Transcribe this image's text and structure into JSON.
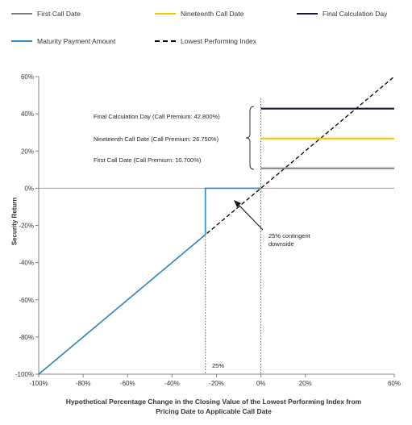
{
  "chart_data": {
    "type": "line",
    "xlabel_lines": [
      "Hypothetical Percentage Change in the Closing Value of the Lowest Performing Index from",
      "Pricing Date to Applicable Call Date"
    ],
    "ylabel": "Security Return",
    "x_ticks": [
      "-100%",
      "-80%",
      "-60%",
      "-40%",
      "-20%",
      "0%",
      "20%",
      "60%"
    ],
    "x_tick_values": [
      -100,
      -80,
      -60,
      -40,
      -20,
      0,
      20,
      60
    ],
    "y_ticks": [
      "60%",
      "40%",
      "20%",
      "0%",
      "-20%",
      "-40%",
      "-60%",
      "-80%",
      "-100%"
    ],
    "y_tick_values": [
      60,
      40,
      20,
      0,
      -20,
      -40,
      -60,
      -80,
      -100
    ],
    "xlim": [
      -100,
      60
    ],
    "ylim": [
      -100,
      60
    ],
    "grid": false,
    "legend_position": "top",
    "series": [
      {
        "name": "First Call Date",
        "color": "#808080",
        "style": "solid",
        "x": [
          0,
          60
        ],
        "y": [
          10.7,
          10.7
        ]
      },
      {
        "name": "Nineteenth Call Date",
        "color": "#f5c400",
        "style": "solid",
        "x": [
          0,
          60
        ],
        "y": [
          26.75,
          26.75
        ]
      },
      {
        "name": "Final Calculation Day",
        "color": "#14143c",
        "style": "solid",
        "x": [
          0,
          60
        ],
        "y": [
          42.8,
          42.8
        ]
      },
      {
        "name": "Maturity Payment Amount",
        "color": "#2e86c1",
        "style": "solid",
        "x": [
          -100,
          -25,
          -25,
          0
        ],
        "y": [
          -100,
          -25,
          0,
          0
        ]
      },
      {
        "name": "Lowest Performing Index",
        "color": "#000000",
        "style": "dashed",
        "x": [
          -100,
          60
        ],
        "y": [
          -100,
          60
        ]
      }
    ],
    "annotations": {
      "final": "Final Calculation Day (Call Premium: 42.800%)",
      "nineteenth": "Nineteenth Call Date (Call Premium: 26.750%)",
      "first": "First Call Date (Call Premium: 10.700%)",
      "downside_line1": "25% contingent",
      "downside_line2": "downside",
      "threshold": "25%"
    }
  }
}
